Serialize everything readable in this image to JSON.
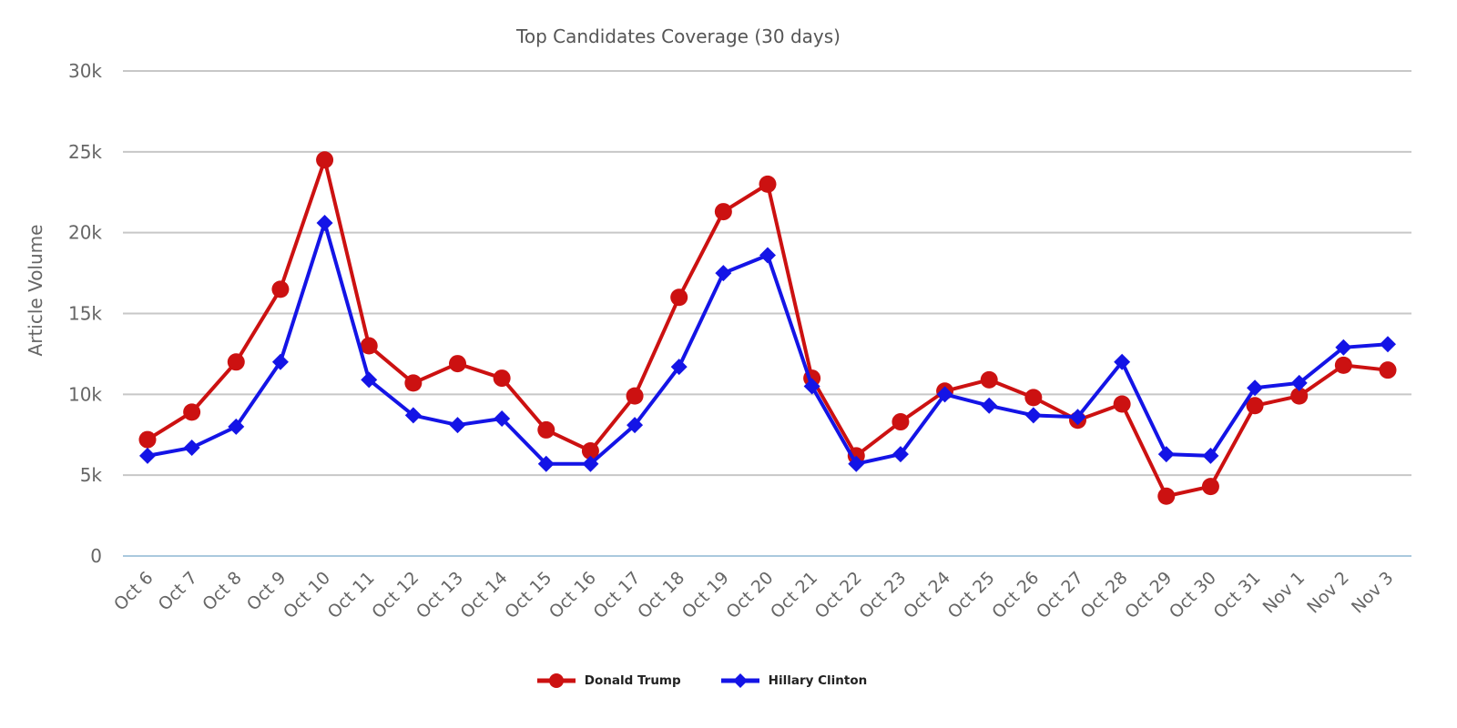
{
  "chart_data": {
    "type": "line",
    "title": "Top Candidates Coverage (30 days)",
    "ylabel": "Article Volume",
    "xlabel": "",
    "ylim": [
      0,
      30000
    ],
    "grid": true,
    "legend_position": "bottom",
    "y_ticks": [
      {
        "value": 0,
        "label": "0"
      },
      {
        "value": 5000,
        "label": "5k"
      },
      {
        "value": 10000,
        "label": "10k"
      },
      {
        "value": 15000,
        "label": "15k"
      },
      {
        "value": 20000,
        "label": "20k"
      },
      {
        "value": 25000,
        "label": "25k"
      },
      {
        "value": 30000,
        "label": "30k"
      }
    ],
    "categories": [
      "Oct 6",
      "Oct 7",
      "Oct 8",
      "Oct 9",
      "Oct 10",
      "Oct 11",
      "Oct 12",
      "Oct 13",
      "Oct 14",
      "Oct 15",
      "Oct 16",
      "Oct 17",
      "Oct 18",
      "Oct 19",
      "Oct 20",
      "Oct 21",
      "Oct 22",
      "Oct 23",
      "Oct 24",
      "Oct 25",
      "Oct 26",
      "Oct 27",
      "Oct 28",
      "Oct 29",
      "Oct 30",
      "Oct 31",
      "Nov 1",
      "Nov 2",
      "Nov 3"
    ],
    "series": [
      {
        "name": "Donald Trump",
        "marker": "circle",
        "color": "#cc1111",
        "values": [
          7200,
          8900,
          12000,
          16500,
          24500,
          13000,
          10700,
          11900,
          11000,
          7800,
          6500,
          9900,
          16000,
          21300,
          23000,
          11000,
          6200,
          8300,
          10200,
          10900,
          9800,
          8400,
          9400,
          3700,
          4300,
          9300,
          9900,
          11800,
          11500
        ]
      },
      {
        "name": "Hillary Clinton",
        "marker": "diamond",
        "color": "#1414e6",
        "values": [
          6200,
          6700,
          8000,
          12000,
          20600,
          10900,
          8700,
          8100,
          8500,
          5700,
          5700,
          8100,
          11700,
          17500,
          18600,
          10500,
          5700,
          6300,
          10000,
          9300,
          8700,
          8600,
          12000,
          6300,
          6200,
          10400,
          10700,
          12900,
          13100
        ]
      }
    ]
  },
  "colors": {
    "grid_line": "#c7c7c7",
    "zero_line": "#aac9de",
    "axis_text": "#666666",
    "title_text": "#555555",
    "legend_text": "#222222",
    "background": "#ffffff"
  }
}
